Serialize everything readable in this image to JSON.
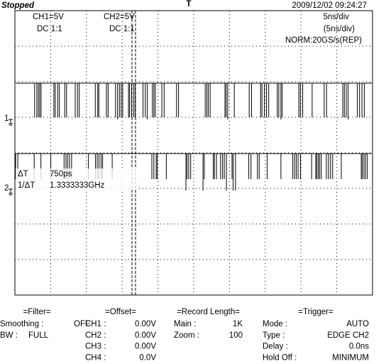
{
  "header": {
    "status": "Stopped",
    "trigger_marker": "T",
    "datetime": "2009/12/02  09:24:27"
  },
  "channels": [
    {
      "scale": "CH1=5V",
      "coupling": "DC  1:1",
      "marker": "1"
    },
    {
      "scale": "CH2=5V",
      "coupling": "DC  1:1",
      "marker": "2"
    }
  ],
  "timebase": {
    "main": "5ns/div",
    "zoom": "(5ns/div)",
    "mode": "NORM:20GS/s(REP)"
  },
  "cursor": {
    "dt_label": "ΔT",
    "dt_value": "750ps",
    "inv_label": "1/ΔT",
    "inv_value": "1.3333333GHz"
  },
  "panels": [
    {
      "title": "=Filter=",
      "rows": [
        [
          "Smoothing :",
          "OFF"
        ],
        [
          "BW :",
          "FULL"
        ]
      ]
    },
    {
      "title": "=Offset=",
      "rows": [
        [
          "CH1 :",
          "0.00V"
        ],
        [
          "CH2 :",
          "0.00V"
        ],
        [
          "CH3 :",
          "0.00V"
        ],
        [
          "CH4 :",
          "0.0V"
        ]
      ]
    },
    {
      "title": "=Record Length=",
      "rows": [
        [
          "Main :",
          "1K"
        ],
        [
          "Zoom :",
          "100"
        ]
      ]
    },
    {
      "title": "=Trigger=",
      "rows": [
        [
          "Mode :",
          "AUTO"
        ],
        [
          "Type :",
          "EDGE CH2"
        ],
        [
          "Delay :",
          "0.0ns"
        ],
        [
          "Hold Off :",
          "MINIMUM"
        ]
      ]
    }
  ]
}
